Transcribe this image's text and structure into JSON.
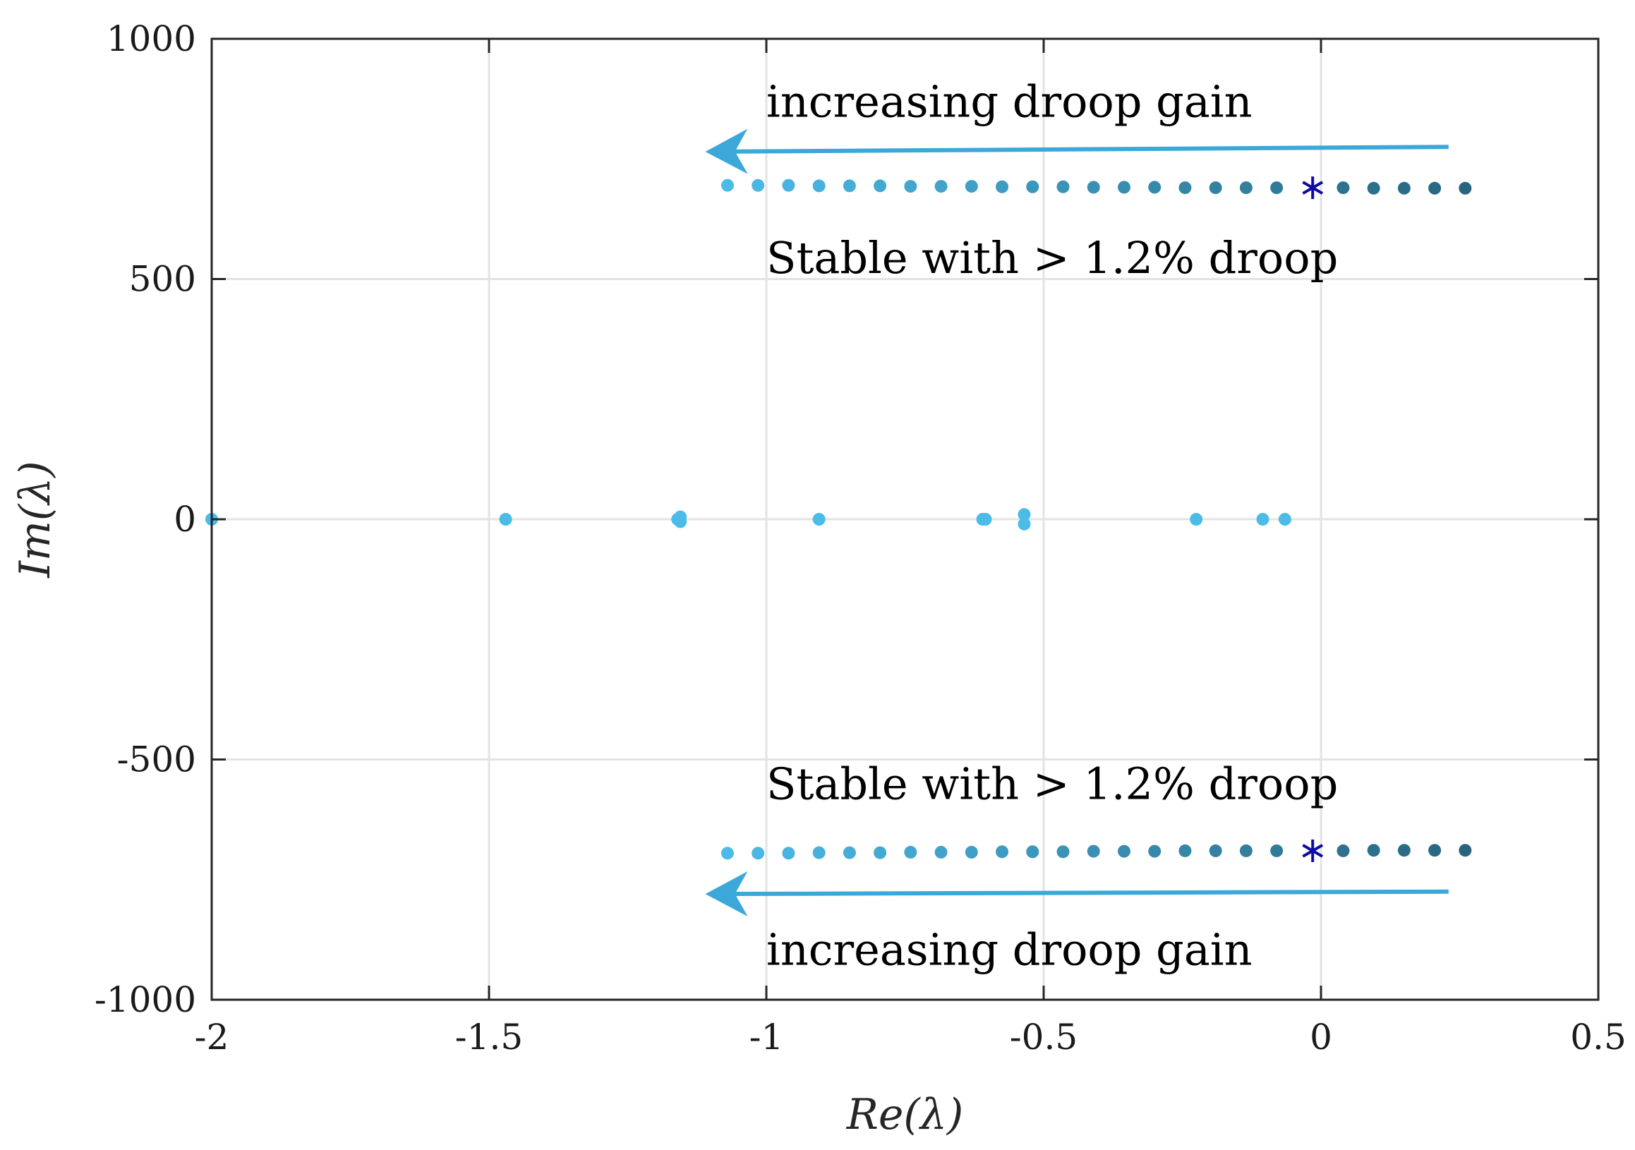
{
  "chart_data": {
    "type": "scatter",
    "title": "",
    "xlabel": "Re(λ)",
    "ylabel": "Im(λ)",
    "xlim": [
      -2,
      0.5
    ],
    "ylim": [
      -1000,
      1000
    ],
    "xticks": [
      -2,
      -1.5,
      -1,
      -0.5,
      0,
      0.5
    ],
    "xtick_labels": [
      "-2",
      "-1.5",
      "-1",
      "-0.5",
      "0",
      "0.5"
    ],
    "yticks": [
      -1000,
      -500,
      0,
      500,
      1000
    ],
    "ytick_labels": [
      "-1000",
      "-500",
      "0",
      "500",
      "1000"
    ],
    "grid": true,
    "legend": "none",
    "colors": {
      "light": "#4bbbe8",
      "dark": "#27657f",
      "marker_star": "#0b0ba6",
      "arrow": "#3ba8d9",
      "grid": "#e3e3e3"
    },
    "series": [
      {
        "role": "upper-branch",
        "points": [
          [
            -1.07,
            695
          ],
          [
            -1.015,
            695
          ],
          [
            -0.96,
            695
          ],
          [
            -0.905,
            694
          ],
          [
            -0.85,
            694
          ],
          [
            -0.795,
            694
          ],
          [
            -0.74,
            693
          ],
          [
            -0.685,
            693
          ],
          [
            -0.63,
            693
          ],
          [
            -0.575,
            692
          ],
          [
            -0.52,
            692
          ],
          [
            -0.465,
            692
          ],
          [
            -0.41,
            691
          ],
          [
            -0.355,
            691
          ],
          [
            -0.3,
            691
          ],
          [
            -0.245,
            690
          ],
          [
            -0.19,
            690
          ],
          [
            -0.135,
            690
          ],
          [
            -0.08,
            690
          ],
          [
            0.04,
            690
          ],
          [
            0.095,
            689
          ],
          [
            0.15,
            689
          ],
          [
            0.205,
            689
          ],
          [
            0.26,
            689
          ]
        ]
      },
      {
        "role": "lower-branch",
        "points": [
          [
            -1.07,
            -695
          ],
          [
            -1.015,
            -695
          ],
          [
            -0.96,
            -695
          ],
          [
            -0.905,
            -694
          ],
          [
            -0.85,
            -694
          ],
          [
            -0.795,
            -694
          ],
          [
            -0.74,
            -693
          ],
          [
            -0.685,
            -693
          ],
          [
            -0.63,
            -693
          ],
          [
            -0.575,
            -692
          ],
          [
            -0.52,
            -692
          ],
          [
            -0.465,
            -692
          ],
          [
            -0.41,
            -691
          ],
          [
            -0.355,
            -691
          ],
          [
            -0.3,
            -691
          ],
          [
            -0.245,
            -690
          ],
          [
            -0.19,
            -690
          ],
          [
            -0.135,
            -690
          ],
          [
            -0.08,
            -690
          ],
          [
            0.04,
            -690
          ],
          [
            0.095,
            -689
          ],
          [
            0.15,
            -689
          ],
          [
            0.205,
            -689
          ],
          [
            0.26,
            -689
          ]
        ]
      },
      {
        "role": "real-axis",
        "points": [
          [
            -2.0,
            0
          ],
          [
            -1.47,
            0
          ],
          [
            -1.16,
            0
          ],
          [
            -1.155,
            5
          ],
          [
            -1.155,
            -5
          ],
          [
            -0.905,
            0
          ],
          [
            -0.61,
            0
          ],
          [
            -0.605,
            0
          ],
          [
            -0.535,
            10
          ],
          [
            -0.535,
            -10
          ],
          [
            -0.225,
            0
          ],
          [
            -0.105,
            0
          ],
          [
            -0.065,
            0
          ]
        ]
      },
      {
        "role": "operating-point",
        "marker": "star",
        "points": [
          [
            -0.015,
            690
          ],
          [
            -0.015,
            -690
          ]
        ]
      }
    ],
    "annotations": [
      {
        "text": "increasing droop gain",
        "x": -1.0,
        "y": 870
      },
      {
        "text": "Stable with > 1.2% droop",
        "x": -1.0,
        "y": 545
      },
      {
        "text": "Stable with > 1.2% droop",
        "x": -1.0,
        "y": -550
      },
      {
        "text": "increasing droop gain",
        "x": -1.0,
        "y": -895
      }
    ],
    "arrows": [
      {
        "from": [
          0.23,
          775
        ],
        "to": [
          -1.11,
          765
        ]
      },
      {
        "from": [
          0.23,
          -775
        ],
        "to": [
          -1.11,
          -780
        ]
      }
    ]
  }
}
